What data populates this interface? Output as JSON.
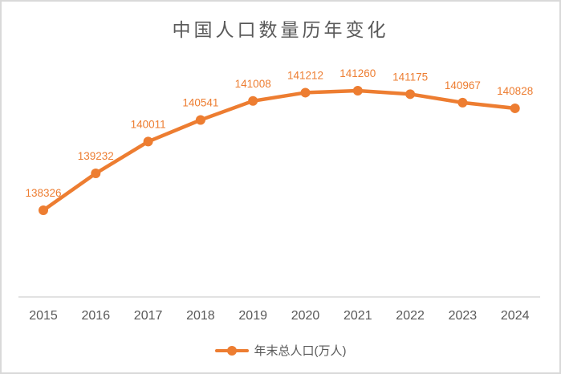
{
  "chart_data": {
    "type": "line",
    "title": "中国人口数量历年变化",
    "categories": [
      "2015",
      "2016",
      "2017",
      "2018",
      "2019",
      "2020",
      "2021",
      "2022",
      "2023",
      "2024"
    ],
    "series": [
      {
        "name": "年末总人口(万人)",
        "values": [
          138326,
          139232,
          140011,
          140541,
          141008,
          141212,
          141260,
          141175,
          140967,
          140828
        ]
      }
    ],
    "xlabel": "",
    "ylabel": "",
    "grid": false,
    "y_axis_visible": false,
    "data_labels_visible": true,
    "legend_position": "bottom",
    "colors": {
      "line": "#ED7D31",
      "marker": "#ED7D31",
      "data_label": "#ED7D31",
      "axis_text": "#595959",
      "title_text": "#595959",
      "axis_line": "#D9D9D9",
      "frame_border": "#D9D9D9",
      "background": "#FFFFFF"
    }
  }
}
